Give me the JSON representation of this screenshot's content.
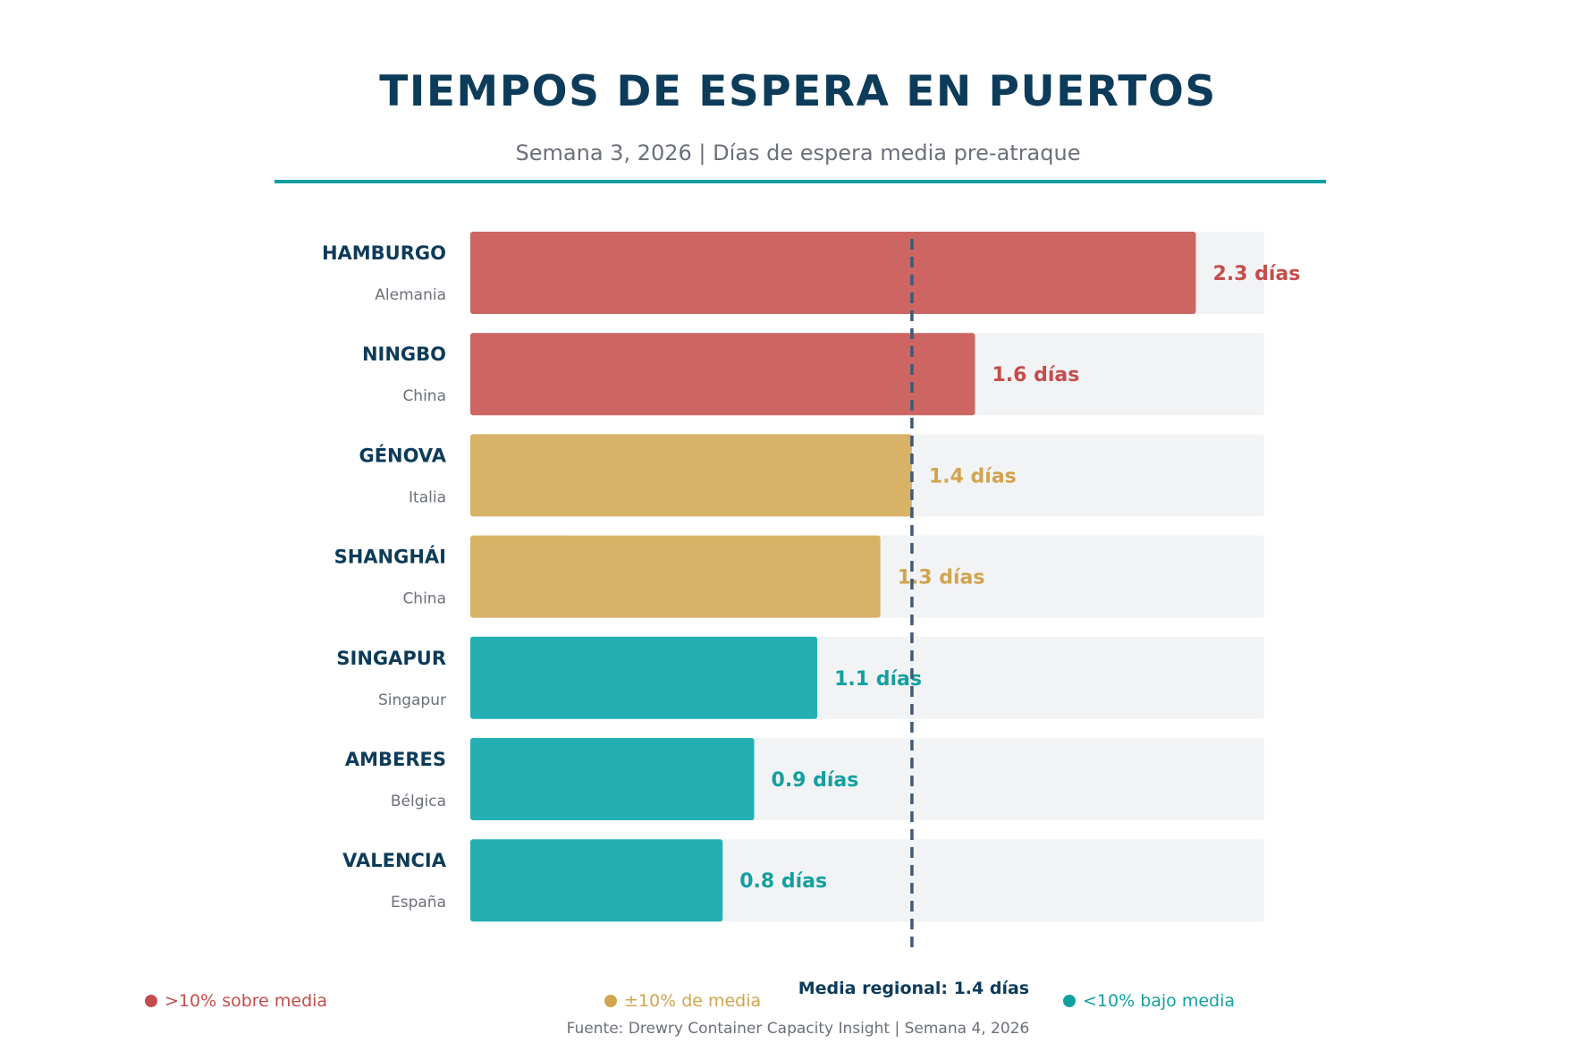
{
  "title": "TIEMPOS DE ESPERA EN PUERTOS",
  "subtitle": "Semana 3, 2026 | Días de espera media pre-atraque",
  "source": "Fuente: Drewry Container Capacity Insight | Semana 4, 2026",
  "colors": {
    "above": "#cd6563",
    "around": "#d8b266",
    "below": "#24b0b2",
    "above_text": "#c44d4b",
    "around_text": "#d1a44d",
    "below_text": "#13a0a0",
    "track": "#f2f3f5",
    "port_name": "#0d3b5a",
    "country": "#6b7078",
    "mean_line": "#3e5a78"
  },
  "legend": [
    {
      "label": ">10% sobre media",
      "color": "#c44d4b"
    },
    {
      "label": "±10% de media",
      "color": "#d1a44d"
    },
    {
      "label": "<10% bajo media",
      "color": "#13a0a0"
    }
  ],
  "chart_data": {
    "type": "bar",
    "orientation": "horizontal",
    "unit": "días",
    "xlim": [
      0,
      2.5
    ],
    "grid": false,
    "mean": {
      "value": 1.4,
      "label": "Media regional: 1.4 días"
    },
    "rows": [
      {
        "port": "HAMBURGO",
        "country": "Alemania",
        "value": 2.3,
        "value_label": "2.3 días",
        "category": "above"
      },
      {
        "port": "NINGBO",
        "country": "China",
        "value": 1.6,
        "value_label": "1.6 días",
        "category": "above"
      },
      {
        "port": "GÉNOVA",
        "country": "Italia",
        "value": 1.4,
        "value_label": "1.4 días",
        "category": "around"
      },
      {
        "port": "SHANGHÁI",
        "country": "China",
        "value": 1.3,
        "value_label": "1.3 días",
        "category": "around"
      },
      {
        "port": "SINGAPUR",
        "country": "Singapur",
        "value": 1.1,
        "value_label": "1.1 días",
        "category": "below"
      },
      {
        "port": "AMBERES",
        "country": "Bélgica",
        "value": 0.9,
        "value_label": "0.9 días",
        "category": "below"
      },
      {
        "port": "VALENCIA",
        "country": "España",
        "value": 0.8,
        "value_label": "0.8 días",
        "category": "below"
      }
    ]
  }
}
